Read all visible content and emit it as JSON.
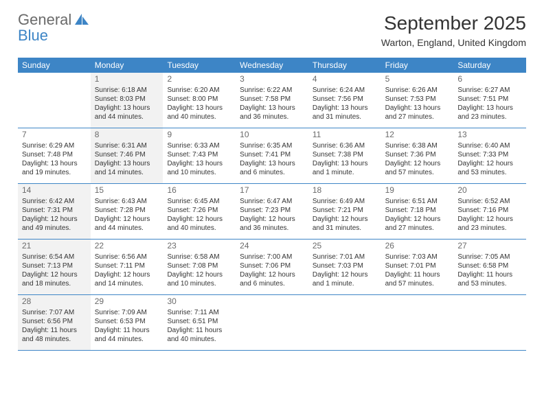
{
  "logo": {
    "text1": "General",
    "text2": "Blue"
  },
  "title": "September 2025",
  "location": "Warton, England, United Kingdom",
  "colors": {
    "header_bg": "#3d85c6",
    "shaded_bg": "#f2f2f2",
    "text": "#333333",
    "muted": "#6a6a6a"
  },
  "weekdays": [
    "Sunday",
    "Monday",
    "Tuesday",
    "Wednesday",
    "Thursday",
    "Friday",
    "Saturday"
  ],
  "weeks": [
    [
      {
        "num": "",
        "shaded": false,
        "lines": []
      },
      {
        "num": "1",
        "shaded": true,
        "lines": [
          "Sunrise: 6:18 AM",
          "Sunset: 8:03 PM",
          "Daylight: 13 hours",
          "and 44 minutes."
        ]
      },
      {
        "num": "2",
        "shaded": false,
        "lines": [
          "Sunrise: 6:20 AM",
          "Sunset: 8:00 PM",
          "Daylight: 13 hours",
          "and 40 minutes."
        ]
      },
      {
        "num": "3",
        "shaded": false,
        "lines": [
          "Sunrise: 6:22 AM",
          "Sunset: 7:58 PM",
          "Daylight: 13 hours",
          "and 36 minutes."
        ]
      },
      {
        "num": "4",
        "shaded": false,
        "lines": [
          "Sunrise: 6:24 AM",
          "Sunset: 7:56 PM",
          "Daylight: 13 hours",
          "and 31 minutes."
        ]
      },
      {
        "num": "5",
        "shaded": false,
        "lines": [
          "Sunrise: 6:26 AM",
          "Sunset: 7:53 PM",
          "Daylight: 13 hours",
          "and 27 minutes."
        ]
      },
      {
        "num": "6",
        "shaded": false,
        "lines": [
          "Sunrise: 6:27 AM",
          "Sunset: 7:51 PM",
          "Daylight: 13 hours",
          "and 23 minutes."
        ]
      }
    ],
    [
      {
        "num": "7",
        "shaded": false,
        "lines": [
          "Sunrise: 6:29 AM",
          "Sunset: 7:48 PM",
          "Daylight: 13 hours",
          "and 19 minutes."
        ]
      },
      {
        "num": "8",
        "shaded": true,
        "lines": [
          "Sunrise: 6:31 AM",
          "Sunset: 7:46 PM",
          "Daylight: 13 hours",
          "and 14 minutes."
        ]
      },
      {
        "num": "9",
        "shaded": false,
        "lines": [
          "Sunrise: 6:33 AM",
          "Sunset: 7:43 PM",
          "Daylight: 13 hours",
          "and 10 minutes."
        ]
      },
      {
        "num": "10",
        "shaded": false,
        "lines": [
          "Sunrise: 6:35 AM",
          "Sunset: 7:41 PM",
          "Daylight: 13 hours",
          "and 6 minutes."
        ]
      },
      {
        "num": "11",
        "shaded": false,
        "lines": [
          "Sunrise: 6:36 AM",
          "Sunset: 7:38 PM",
          "Daylight: 13 hours",
          "and 1 minute."
        ]
      },
      {
        "num": "12",
        "shaded": false,
        "lines": [
          "Sunrise: 6:38 AM",
          "Sunset: 7:36 PM",
          "Daylight: 12 hours",
          "and 57 minutes."
        ]
      },
      {
        "num": "13",
        "shaded": false,
        "lines": [
          "Sunrise: 6:40 AM",
          "Sunset: 7:33 PM",
          "Daylight: 12 hours",
          "and 53 minutes."
        ]
      }
    ],
    [
      {
        "num": "14",
        "shaded": true,
        "lines": [
          "Sunrise: 6:42 AM",
          "Sunset: 7:31 PM",
          "Daylight: 12 hours",
          "and 49 minutes."
        ]
      },
      {
        "num": "15",
        "shaded": false,
        "lines": [
          "Sunrise: 6:43 AM",
          "Sunset: 7:28 PM",
          "Daylight: 12 hours",
          "and 44 minutes."
        ]
      },
      {
        "num": "16",
        "shaded": false,
        "lines": [
          "Sunrise: 6:45 AM",
          "Sunset: 7:26 PM",
          "Daylight: 12 hours",
          "and 40 minutes."
        ]
      },
      {
        "num": "17",
        "shaded": false,
        "lines": [
          "Sunrise: 6:47 AM",
          "Sunset: 7:23 PM",
          "Daylight: 12 hours",
          "and 36 minutes."
        ]
      },
      {
        "num": "18",
        "shaded": false,
        "lines": [
          "Sunrise: 6:49 AM",
          "Sunset: 7:21 PM",
          "Daylight: 12 hours",
          "and 31 minutes."
        ]
      },
      {
        "num": "19",
        "shaded": false,
        "lines": [
          "Sunrise: 6:51 AM",
          "Sunset: 7:18 PM",
          "Daylight: 12 hours",
          "and 27 minutes."
        ]
      },
      {
        "num": "20",
        "shaded": false,
        "lines": [
          "Sunrise: 6:52 AM",
          "Sunset: 7:16 PM",
          "Daylight: 12 hours",
          "and 23 minutes."
        ]
      }
    ],
    [
      {
        "num": "21",
        "shaded": true,
        "lines": [
          "Sunrise: 6:54 AM",
          "Sunset: 7:13 PM",
          "Daylight: 12 hours",
          "and 18 minutes."
        ]
      },
      {
        "num": "22",
        "shaded": false,
        "lines": [
          "Sunrise: 6:56 AM",
          "Sunset: 7:11 PM",
          "Daylight: 12 hours",
          "and 14 minutes."
        ]
      },
      {
        "num": "23",
        "shaded": false,
        "lines": [
          "Sunrise: 6:58 AM",
          "Sunset: 7:08 PM",
          "Daylight: 12 hours",
          "and 10 minutes."
        ]
      },
      {
        "num": "24",
        "shaded": false,
        "lines": [
          "Sunrise: 7:00 AM",
          "Sunset: 7:06 PM",
          "Daylight: 12 hours",
          "and 6 minutes."
        ]
      },
      {
        "num": "25",
        "shaded": false,
        "lines": [
          "Sunrise: 7:01 AM",
          "Sunset: 7:03 PM",
          "Daylight: 12 hours",
          "and 1 minute."
        ]
      },
      {
        "num": "26",
        "shaded": false,
        "lines": [
          "Sunrise: 7:03 AM",
          "Sunset: 7:01 PM",
          "Daylight: 11 hours",
          "and 57 minutes."
        ]
      },
      {
        "num": "27",
        "shaded": false,
        "lines": [
          "Sunrise: 7:05 AM",
          "Sunset: 6:58 PM",
          "Daylight: 11 hours",
          "and 53 minutes."
        ]
      }
    ],
    [
      {
        "num": "28",
        "shaded": true,
        "lines": [
          "Sunrise: 7:07 AM",
          "Sunset: 6:56 PM",
          "Daylight: 11 hours",
          "and 48 minutes."
        ]
      },
      {
        "num": "29",
        "shaded": false,
        "lines": [
          "Sunrise: 7:09 AM",
          "Sunset: 6:53 PM",
          "Daylight: 11 hours",
          "and 44 minutes."
        ]
      },
      {
        "num": "30",
        "shaded": false,
        "lines": [
          "Sunrise: 7:11 AM",
          "Sunset: 6:51 PM",
          "Daylight: 11 hours",
          "and 40 minutes."
        ]
      },
      {
        "num": "",
        "shaded": false,
        "lines": []
      },
      {
        "num": "",
        "shaded": false,
        "lines": []
      },
      {
        "num": "",
        "shaded": false,
        "lines": []
      },
      {
        "num": "",
        "shaded": false,
        "lines": []
      }
    ]
  ]
}
